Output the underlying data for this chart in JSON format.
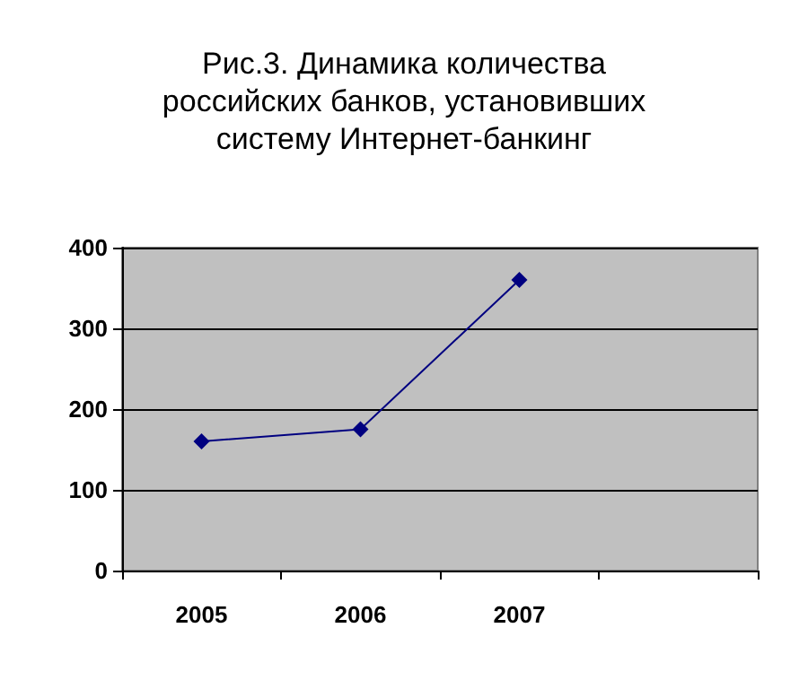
{
  "chart_data": {
    "type": "line",
    "title": "Рис.3. Динамика количества\nроссийских банков, установивших\nсистему Интернет-банкинг",
    "categories": [
      "2005",
      "2006",
      "2007",
      null
    ],
    "series": [
      {
        "color": "#000080",
        "values": [
          160,
          175,
          360,
          null
        ]
      }
    ],
    "ylim": [
      0,
      400
    ],
    "yticks": [
      0,
      100,
      200,
      300,
      400
    ],
    "grid": "y",
    "marker": "diamond",
    "line_style": "solid"
  }
}
